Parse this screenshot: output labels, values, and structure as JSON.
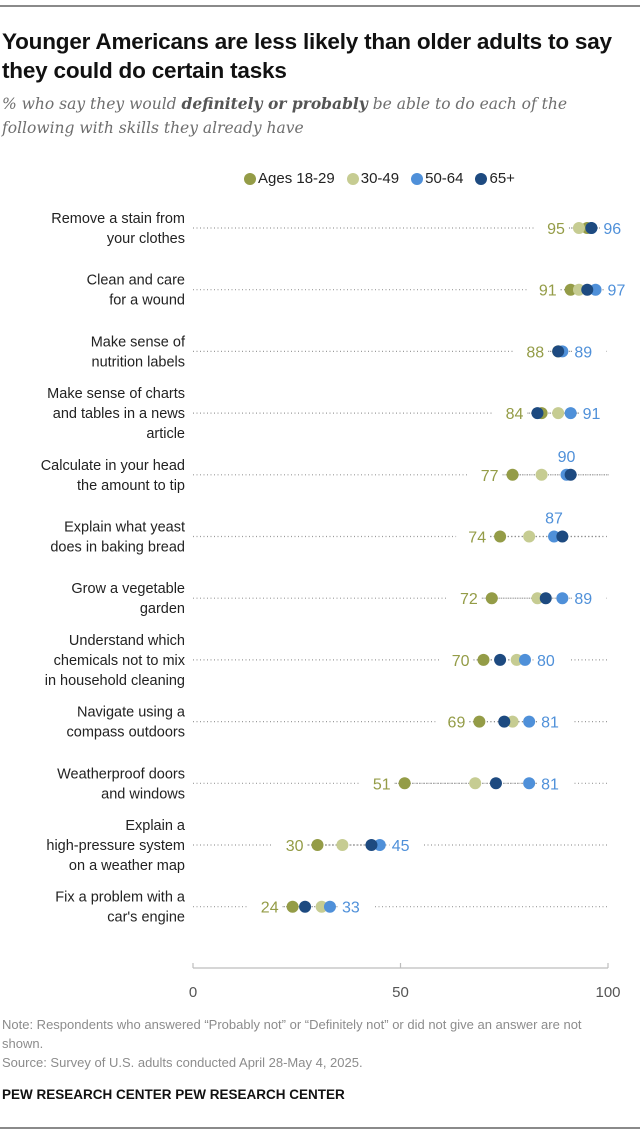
{
  "header": {
    "title": "Younger Americans are less likely than older adults to say they could do certain tasks",
    "subtitle_pre": "% who say they would ",
    "subtitle_bold": "definitely or probably",
    "subtitle_post": " be able to do each of the following with skills they already have"
  },
  "footer": {
    "note": "Note: Respondents who answered “Probably not” or “Definitely not” or did not give an answer are not shown.",
    "source": "Source: Survey of U.S. adults conducted April 28-May 4, 2025.",
    "brand": "PEW RESEARCH CENTER PEW RESEARCH CENTER"
  },
  "chart_data": {
    "type": "scatter",
    "subtype": "dot-plot",
    "title": "Younger Americans are less likely than older adults to say they could do certain tasks",
    "subtitle": "% who say they would definitely or probably be able to do each of the following with skills they already have",
    "xlabel": "",
    "ylabel": "",
    "xlim": [
      0,
      100
    ],
    "xticks": [
      0,
      50,
      100
    ],
    "grid": false,
    "legend_position": "top",
    "categories": [
      "Remove a stain from your clothes",
      "Clean and care for a wound",
      "Make sense of nutrition labels",
      "Make sense of charts and tables in a news article",
      "Calculate in your head the amount to tip",
      "Explain what yeast does in baking bread",
      "Grow a vegetable garden",
      "Understand which chemicals not to mix in household cleaning",
      "Navigate using a compass outdoors",
      "Weatherproof doors and windows",
      "Explain a high-pressure system on a weather map",
      "Fix a problem with a car's engine"
    ],
    "category_lines": [
      [
        "Remove a stain from",
        "your clothes"
      ],
      [
        "Clean and care",
        "for a wound"
      ],
      [
        "Make sense of",
        "nutrition labels"
      ],
      [
        "Make sense of charts",
        "and tables in a news",
        "article"
      ],
      [
        "Calculate in your head",
        "the amount to tip"
      ],
      [
        "Explain what yeast",
        "does in baking bread"
      ],
      [
        "Grow a vegetable",
        "garden"
      ],
      [
        "Understand which",
        "chemicals not to mix",
        "in household cleaning"
      ],
      [
        "Navigate using a",
        "compass outdoors"
      ],
      [
        "Weatherproof doors",
        "and windows"
      ],
      [
        "Explain a",
        "high-pressure system",
        "on a weather map"
      ],
      [
        "Fix a problem with a",
        "car's engine"
      ]
    ],
    "series": [
      {
        "name": "Ages 18-29",
        "color": "#949c47",
        "values": [
          95,
          91,
          88,
          84,
          77,
          74,
          72,
          70,
          69,
          51,
          30,
          24
        ]
      },
      {
        "name": "30-49",
        "color": "#c6cc92",
        "values": [
          93,
          93,
          88,
          88,
          84,
          81,
          83,
          78,
          77,
          68,
          36,
          31
        ]
      },
      {
        "name": "50-64",
        "color": "#4f90d9",
        "values": [
          96,
          97,
          89,
          91,
          90,
          87,
          89,
          80,
          81,
          81,
          45,
          33
        ]
      },
      {
        "name": "65+",
        "color": "#1d4a80",
        "values": [
          96,
          95,
          88,
          83,
          91,
          89,
          85,
          74,
          75,
          73,
          43,
          27
        ]
      }
    ],
    "data_labels": [
      {
        "min": 95,
        "max": 96,
        "max_above": false
      },
      {
        "min": 91,
        "max": 97,
        "max_above": false
      },
      {
        "min": 88,
        "max": 89,
        "max_above": false
      },
      {
        "min": 84,
        "max": 91,
        "max_above": false
      },
      {
        "min": 77,
        "max": 90,
        "max_above": true
      },
      {
        "min": 74,
        "max": 87,
        "max_above": true
      },
      {
        "min": 72,
        "max": 89,
        "max_above": false
      },
      {
        "min": 70,
        "max": 80,
        "max_above": false
      },
      {
        "min": 69,
        "max": 81,
        "max_above": false
      },
      {
        "min": 51,
        "max": 81,
        "max_above": false
      },
      {
        "min": 30,
        "max": 45,
        "max_above": false
      },
      {
        "min": 24,
        "max": 33,
        "max_above": false
      }
    ],
    "colors": {
      "min_label": "#949c47",
      "max_label": "#4f90d9",
      "axis": "#bdbdbd",
      "dots_line": "#9a9a9a"
    }
  }
}
